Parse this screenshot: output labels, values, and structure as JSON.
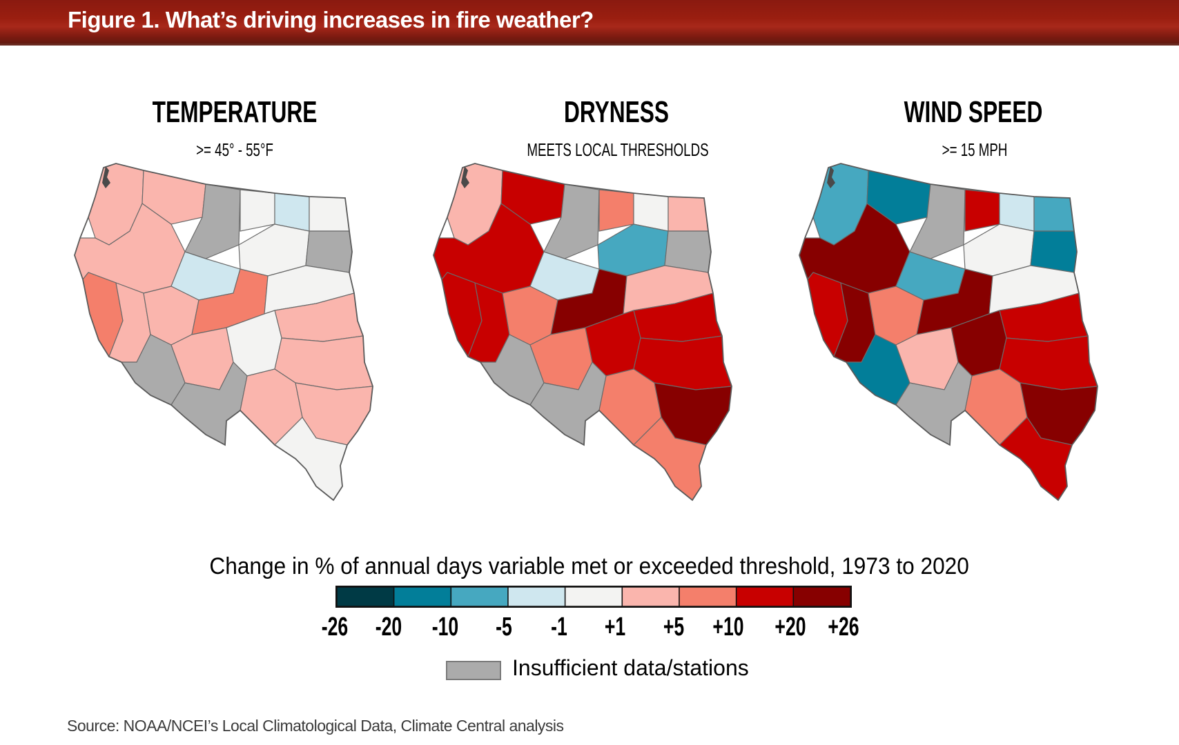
{
  "header": {
    "title": "Figure 1. What’s driving increases in fire weather?"
  },
  "chart_data": {
    "type": "heatmap",
    "title": "Figure 1. What’s driving increases in fire weather?",
    "panels": [
      {
        "name": "TEMPERATURE",
        "subtitle": ">= 45° - 55°F",
        "dominant_bins": [
          "+1 to +5",
          "-1 to +1",
          "insufficient"
        ],
        "region_bins": [
          "+1/+5",
          "+1/+5",
          "na",
          "-1/+1",
          "-5/-1",
          "-1/+1",
          "-1/+1",
          "na",
          "+1/+5",
          "-5/-1",
          "+5/+10",
          "+1/+5",
          "+1/+5",
          "+5/+10",
          "-1/+1",
          "+1/+5",
          "na",
          "+1/+5",
          "-1/+1",
          "+1/+5",
          "na",
          "+1/+5",
          "+1/+5",
          "-1/+1"
        ]
      },
      {
        "name": "DRYNESS",
        "subtitle": "MEETS LOCAL THRESHOLDS",
        "dominant_bins": [
          "+10 to +20",
          "+5 to +10",
          "+1 to +5",
          "insufficient"
        ],
        "region_bins": [
          "+1/+5",
          "+10/+20",
          "na",
          "+5/+10",
          "-1/+1",
          "+1/+5",
          "-10/-5",
          "na",
          "+10/+20",
          "-5/-1",
          "+10/+20",
          "+10/+20",
          "+5/+10",
          "+20/+26",
          "+1/+5",
          "+10/+20",
          "na",
          "+5/+10",
          "+10/+20",
          "+10/+20",
          "na",
          "+5/+10",
          "+20/+26",
          "+5/+10"
        ]
      },
      {
        "name": "WIND SPEED",
        "subtitle": ">= 15 MPH",
        "dominant_bins": [
          "+10 to +20",
          "+20 to +26",
          "-20 to -10",
          "+1 to +5",
          "insufficient"
        ],
        "region_bins": [
          "-10/-5",
          "-20/-10",
          "na",
          "+10/+20",
          "-5/-1",
          "-10/-5",
          "-1/+1",
          "-20/-10",
          "+20/+26",
          "-10/-5",
          "+10/+20",
          "+20/+26",
          "+5/+10",
          "+20/+26",
          "-1/+1",
          "+10/+20",
          "-20/-10",
          "+1/+5",
          "+20/+26",
          "+10/+20",
          "na",
          "+5/+10",
          "+20/+26",
          "+10/+20"
        ]
      }
    ],
    "legend": {
      "title": "Change in % of annual days variable met or exceeded threshold, 1973 to 2020",
      "ticks": [
        "-26",
        "-20",
        "-10",
        "-5",
        "-1",
        "+1",
        "+5",
        "+10",
        "+20",
        "+26"
      ],
      "bins": [
        {
          "range": [
            -26,
            -20
          ],
          "color": "#003a45"
        },
        {
          "range": [
            -20,
            -10
          ],
          "color": "#027e99"
        },
        {
          "range": [
            -10,
            -5
          ],
          "color": "#46a8c0"
        },
        {
          "range": [
            -5,
            -1
          ],
          "color": "#cfe7ef"
        },
        {
          "range": [
            -1,
            1
          ],
          "color": "#f3f3f2"
        },
        {
          "range": [
            1,
            5
          ],
          "color": "#fab5ad"
        },
        {
          "range": [
            5,
            10
          ],
          "color": "#f47f6b"
        },
        {
          "range": [
            10,
            20
          ],
          "color": "#c80000"
        },
        {
          "range": [
            20,
            26
          ],
          "color": "#870000"
        }
      ],
      "insufficient": {
        "label": "Insufficient data/stations",
        "color": "#ababab"
      }
    },
    "source": "Source: NOAA/NCEI’s Local Climatological Data, Climate Central analysis"
  }
}
